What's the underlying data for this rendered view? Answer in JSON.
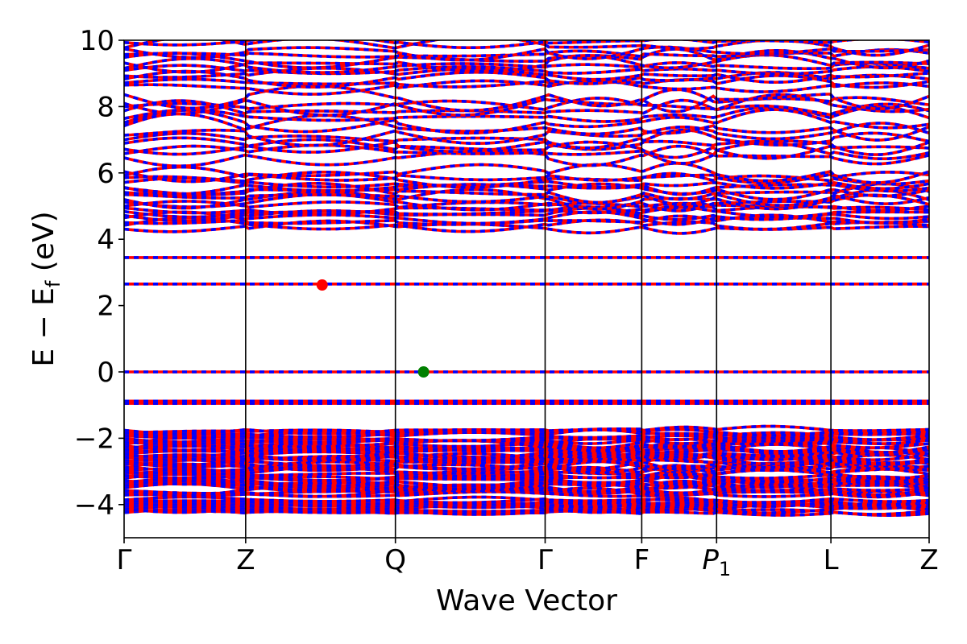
{
  "chart_data": {
    "type": "line",
    "title": "",
    "xlabel": "Wave Vector",
    "ylabel_parts": {
      "main": "E − E",
      "sub": "f",
      "unit": " (eV)"
    },
    "ylim": [
      -5,
      10
    ],
    "yticks": [
      -4,
      -2,
      0,
      2,
      4,
      6,
      8,
      10
    ],
    "ytick_labels": [
      "−4",
      "−2",
      "0",
      "2",
      "4",
      "6",
      "8",
      "10"
    ],
    "x_range": [
      0,
      1
    ],
    "kpoints": [
      {
        "label": "Γ",
        "x": 0.0
      },
      {
        "label": "Z",
        "x": 0.151
      },
      {
        "label": "Q",
        "x": 0.337
      },
      {
        "label": "Γ",
        "x": 0.523
      },
      {
        "label": "F",
        "x": 0.643
      },
      {
        "label": "P",
        "sub": "1",
        "x": 0.736
      },
      {
        "label": "L",
        "x": 0.878
      },
      {
        "label": "Z",
        "x": 1.0
      }
    ],
    "series": [
      {
        "color": "#ff0000",
        "style": "solid"
      },
      {
        "color": "#0000ff",
        "style": "dashed"
      }
    ],
    "flat_bands": [
      3.45,
      2.65,
      0.0,
      -0.88,
      -0.95
    ],
    "markers": [
      {
        "x": 0.246,
        "y": 2.62,
        "color": "#ff0000"
      },
      {
        "x": 0.372,
        "y": 0.0,
        "color": "#008000"
      }
    ],
    "grid": false
  }
}
